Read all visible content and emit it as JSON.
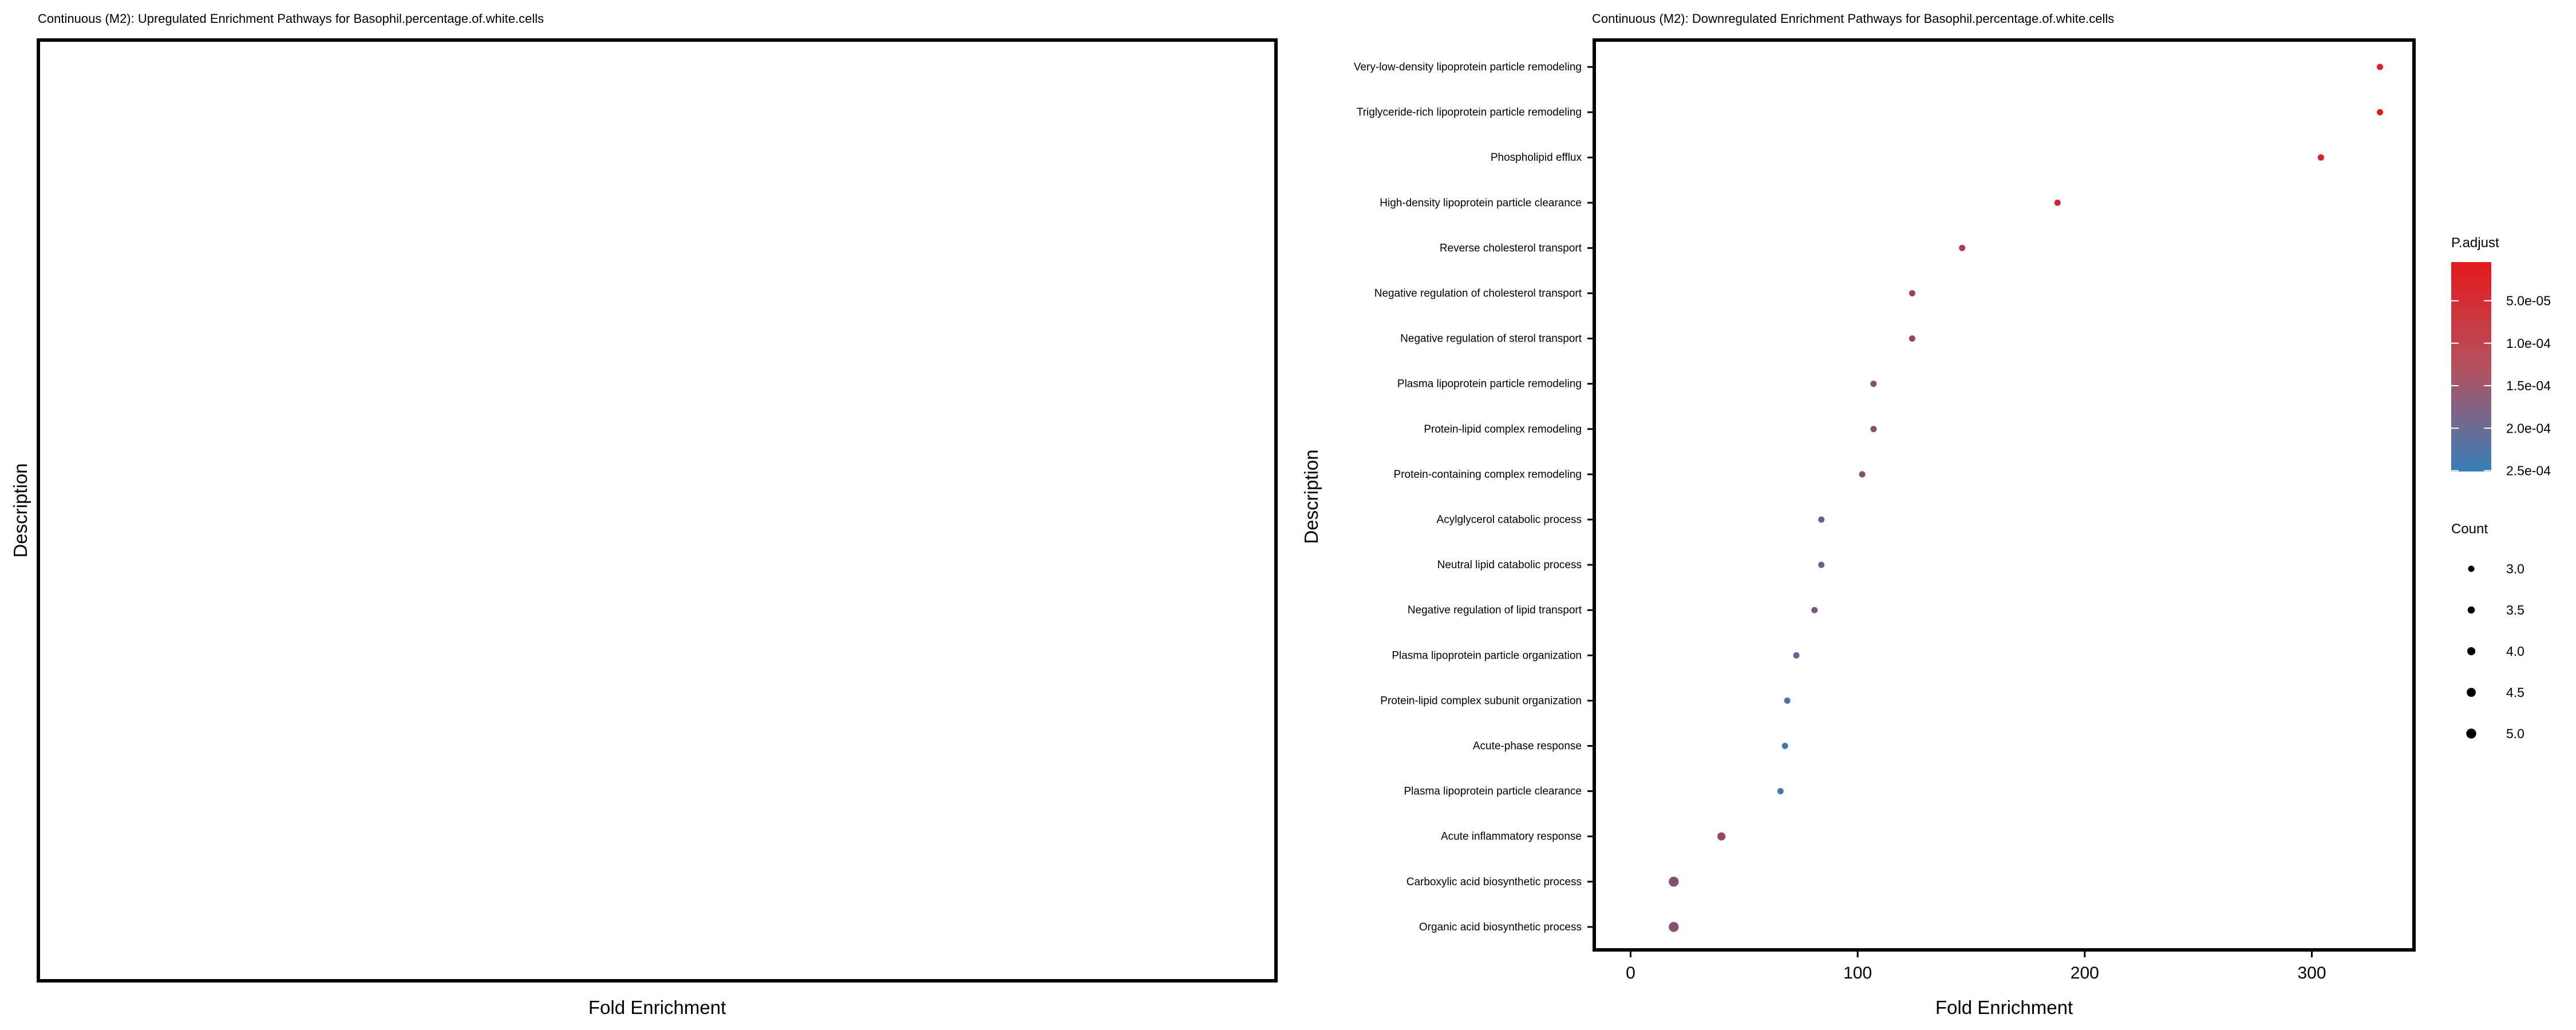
{
  "chart_data": [
    {
      "type": "scatter",
      "title": "Continuous (M2): Upregulated Enrichment Pathways for Basophil.percentage.of.white.cells",
      "xlabel": "Fold Enrichment",
      "ylabel": "Description",
      "categories": [],
      "points": []
    },
    {
      "type": "scatter",
      "title": "Continuous (M2): Downregulated Enrichment Pathways for Basophil.percentage.of.white.cells",
      "xlabel": "Fold Enrichment",
      "ylabel": "Description",
      "xlim": [
        -16,
        345
      ],
      "xticks": [
        0,
        100,
        200,
        300
      ],
      "categories": [
        "Very-low-density lipoprotein particle remodeling",
        "Triglyceride-rich lipoprotein particle remodeling",
        "Phospholipid efflux",
        "High-density lipoprotein particle clearance",
        "Reverse cholesterol transport",
        "Negative regulation of cholesterol transport",
        "Negative regulation of sterol transport",
        "Plasma lipoprotein particle remodeling",
        "Protein-lipid complex remodeling",
        "Protein-containing complex remodeling",
        "Acylglycerol catabolic process",
        "Neutral lipid catabolic process",
        "Negative regulation of lipid transport",
        "Plasma lipoprotein particle organization",
        "Protein-lipid complex subunit organization",
        "Acute-phase response",
        "Plasma lipoprotein particle clearance",
        "Acute inflammatory response",
        "Carboxylic acid biosynthetic process",
        "Organic acid biosynthetic process"
      ],
      "points": [
        {
          "fold_enrichment": 330,
          "p_adjust": 1.5e-05,
          "count": 3
        },
        {
          "fold_enrichment": 330,
          "p_adjust": 1.5e-05,
          "count": 3
        },
        {
          "fold_enrichment": 304,
          "p_adjust": 2e-05,
          "count": 3
        },
        {
          "fold_enrichment": 188,
          "p_adjust": 4.5e-05,
          "count": 3
        },
        {
          "fold_enrichment": 146,
          "p_adjust": 8e-05,
          "count": 3
        },
        {
          "fold_enrichment": 124,
          "p_adjust": 0.00011,
          "count": 3
        },
        {
          "fold_enrichment": 124,
          "p_adjust": 0.00011,
          "count": 3
        },
        {
          "fold_enrichment": 107,
          "p_adjust": 0.00014,
          "count": 3
        },
        {
          "fold_enrichment": 107,
          "p_adjust": 0.00014,
          "count": 3
        },
        {
          "fold_enrichment": 102,
          "p_adjust": 0.00014,
          "count": 3
        },
        {
          "fold_enrichment": 84,
          "p_adjust": 0.00017,
          "count": 3
        },
        {
          "fold_enrichment": 84,
          "p_adjust": 0.00017,
          "count": 3
        },
        {
          "fold_enrichment": 81,
          "p_adjust": 0.00016,
          "count": 3
        },
        {
          "fold_enrichment": 73,
          "p_adjust": 0.0002,
          "count": 3
        },
        {
          "fold_enrichment": 69,
          "p_adjust": 0.00023,
          "count": 3
        },
        {
          "fold_enrichment": 68,
          "p_adjust": 0.00024,
          "count": 3
        },
        {
          "fold_enrichment": 66,
          "p_adjust": 0.00024,
          "count": 3
        },
        {
          "fold_enrichment": 40,
          "p_adjust": 0.00011,
          "count": 4
        },
        {
          "fold_enrichment": 19,
          "p_adjust": 0.00014,
          "count": 5
        },
        {
          "fold_enrichment": 19,
          "p_adjust": 0.00014,
          "count": 5
        }
      ],
      "color_legend": {
        "title": "P.adjust",
        "domain": [
          5e-06,
          0.00025
        ],
        "high_color": "#E41A1C",
        "low_color": "#377EB8",
        "ticks": [
          5e-05,
          0.0001,
          0.00015,
          0.0002,
          0.00025
        ],
        "labels": [
          "5.0e-05",
          "1.0e-04",
          "1.5e-04",
          "2.0e-04",
          "2.5e-04"
        ]
      },
      "size_legend": {
        "title": "Count",
        "values": [
          3,
          3.5,
          4,
          4.5,
          5
        ],
        "labels": [
          "3.0",
          "3.5",
          "4.0",
          "4.5",
          "5.0"
        ]
      }
    }
  ]
}
